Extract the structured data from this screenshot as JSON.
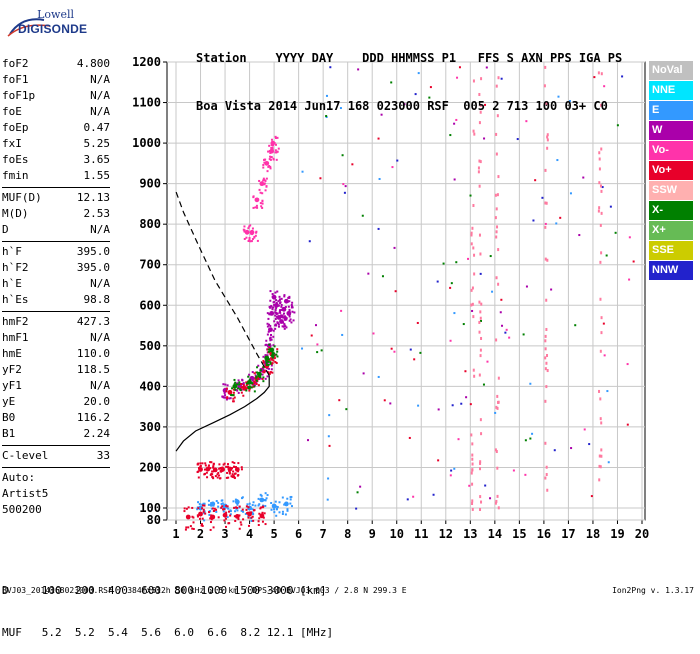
{
  "logo": {
    "line1": "Lowell",
    "line2": "DIGISONDE"
  },
  "header": {
    "line1": "Station    YYYY DAY    DDD HHMMSS P1   FFS S AXN PPS IGA PS",
    "line2": "Boa Vista 2014 Jun17 168 023000 RSF  005 2 713 100 03+ C0"
  },
  "params": {
    "group1": [
      {
        "name": "foF2",
        "value": "4.800"
      },
      {
        "name": "foF1",
        "value": "N/A"
      },
      {
        "name": "foF1p",
        "value": "N/A"
      },
      {
        "name": "foE",
        "value": "N/A"
      },
      {
        "name": "foEp",
        "value": "0.47"
      },
      {
        "name": "fxI",
        "value": "5.25"
      },
      {
        "name": "foEs",
        "value": "3.65"
      },
      {
        "name": "fmin",
        "value": "1.55"
      }
    ],
    "group2": [
      {
        "name": "MUF(D)",
        "value": "12.13"
      },
      {
        "name": "M(D)",
        "value": "2.53"
      },
      {
        "name": "D",
        "value": "N/A"
      }
    ],
    "group3": [
      {
        "name": "h`F",
        "value": "395.0"
      },
      {
        "name": "h`F2",
        "value": "395.0"
      },
      {
        "name": "h`E",
        "value": "N/A"
      },
      {
        "name": "h`Es",
        "value": "98.8"
      }
    ],
    "group4": [
      {
        "name": "hmF2",
        "value": "427.3"
      },
      {
        "name": "hmF1",
        "value": "N/A"
      },
      {
        "name": "hmE",
        "value": "110.0"
      },
      {
        "name": "yF2",
        "value": "118.5"
      },
      {
        "name": "yF1",
        "value": "N/A"
      },
      {
        "name": "yE",
        "value": "20.0"
      },
      {
        "name": "B0",
        "value": "116.2"
      },
      {
        "name": "B1",
        "value": "2.24"
      }
    ],
    "group5": [
      {
        "name": "C-level",
        "value": "33"
      }
    ],
    "auto": [
      "Auto:",
      "Artist5",
      "500200"
    ]
  },
  "legend": [
    {
      "label": "NoVal",
      "color": "#c0c0c0",
      "text": "#ffffff"
    },
    {
      "label": "NNE",
      "color": "#00e5ff",
      "text": "#ffffff"
    },
    {
      "label": "E",
      "color": "#3399ff",
      "text": "#ffffff"
    },
    {
      "label": "W",
      "color": "#aa00aa",
      "text": "#ffffff"
    },
    {
      "label": "Vo-",
      "color": "#ff33aa",
      "text": "#ffffff"
    },
    {
      "label": "Vo+",
      "color": "#e8002a",
      "text": "#ffffff"
    },
    {
      "label": "SSW",
      "color": "#ffb0b0",
      "text": "#ffffff"
    },
    {
      "label": "X-",
      "color": "#008000",
      "text": "#ffffff"
    },
    {
      "label": "X+",
      "color": "#66bb55",
      "text": "#ffffff"
    },
    {
      "label": "SSE",
      "color": "#cccc00",
      "text": "#ffffff"
    },
    {
      "label": "NNW",
      "color": "#2222cc",
      "text": "#ffffff"
    }
  ],
  "bottom": {
    "d_line": "D     100  200  400  600  800 1000 1500 3000 [km]",
    "muf_line": "MUF   5.2  5.2  5.4  5.6  6.0  6.6  8.2 12.1 [MHz]"
  },
  "footer": {
    "file": "BVJ03_2014168023000.RSF / 384fx512h 50 kHz 2.5 km / DPS-4D BVJ03 003 / 2.8 N 299.3 E",
    "version": "Ion2Png v. 1.3.17"
  },
  "chart_data": {
    "type": "scatter",
    "x_ticks": [
      "1",
      "2",
      "3",
      "4",
      "5",
      "6",
      "7",
      "8",
      "9",
      "10",
      "11",
      "12",
      "13",
      "14",
      "15",
      "16",
      "17",
      "18",
      "19",
      "20"
    ],
    "y_ticks": [
      "80",
      "100",
      "200",
      "300",
      "400",
      "500",
      "600",
      "700",
      "800",
      "900",
      "1000",
      "1100",
      "1200"
    ],
    "xlim": [
      1,
      20
    ],
    "ylim": [
      80,
      1200
    ],
    "grid": true,
    "legend_position": "right",
    "profile_curve": {
      "x": [
        1.0,
        1.3,
        1.8,
        2.5,
        3.2,
        3.8,
        4.3,
        4.6,
        4.8,
        4.8
      ],
      "y": [
        240,
        265,
        290,
        310,
        330,
        350,
        370,
        385,
        400,
        427
      ]
    },
    "profile_dashed": {
      "x": [
        4.8,
        4.3,
        3.5,
        2.6,
        1.9,
        1.3,
        1.0
      ],
      "y": [
        427,
        480,
        570,
        660,
        750,
        830,
        880
      ]
    },
    "clusters": [
      {
        "name": "F2 trace",
        "color": "#aa00aa",
        "x": [
          3.0,
          3.6,
          4.1,
          4.5,
          4.7,
          4.8,
          4.85,
          4.9,
          5.0,
          5.1,
          5.2,
          5.3,
          5.4,
          5.5,
          5.6
        ],
        "y": [
          390,
          400,
          420,
          440,
          460,
          500,
          540,
          580,
          620,
          600,
          570,
          560,
          590,
          610,
          580
        ]
      },
      {
        "name": "F2 trace red",
        "color": "#e8002a",
        "x": [
          3.2,
          3.8,
          4.3,
          4.7,
          4.9
        ],
        "y": [
          385,
          395,
          420,
          450,
          480
        ]
      },
      {
        "name": "F2 trace green",
        "color": "#008000",
        "x": [
          3.4,
          4.0,
          4.4,
          4.7,
          4.9
        ],
        "y": [
          400,
          410,
          430,
          470,
          490
        ]
      },
      {
        "name": "2nd hop",
        "color": "#ff33aa",
        "x": [
          3.9,
          4.1,
          4.3,
          4.5,
          4.7,
          4.9,
          4.95
        ],
        "y": [
          780,
          780,
          860,
          900,
          950,
          980,
          1000
        ]
      },
      {
        "name": "Es trace",
        "color": "#e8002a",
        "x": [
          2.0,
          2.3,
          2.6,
          2.9,
          3.2,
          3.5
        ],
        "y": [
          195,
          196,
          194,
          195,
          196,
          195
        ]
      },
      {
        "name": "low E",
        "color": "#3399ff",
        "x": [
          2.0,
          2.5,
          3.0,
          3.5,
          4.0,
          4.5,
          5.0,
          5.5
        ],
        "y": [
          100,
          110,
          105,
          115,
          100,
          120,
          105,
          110
        ]
      },
      {
        "name": "low E2",
        "color": "#e8002a",
        "x": [
          1.5,
          2.0,
          2.5,
          3.0,
          3.5,
          4.0,
          4.5
        ],
        "y": [
          85,
          90,
          85,
          88,
          86,
          90,
          87
        ]
      }
    ]
  }
}
